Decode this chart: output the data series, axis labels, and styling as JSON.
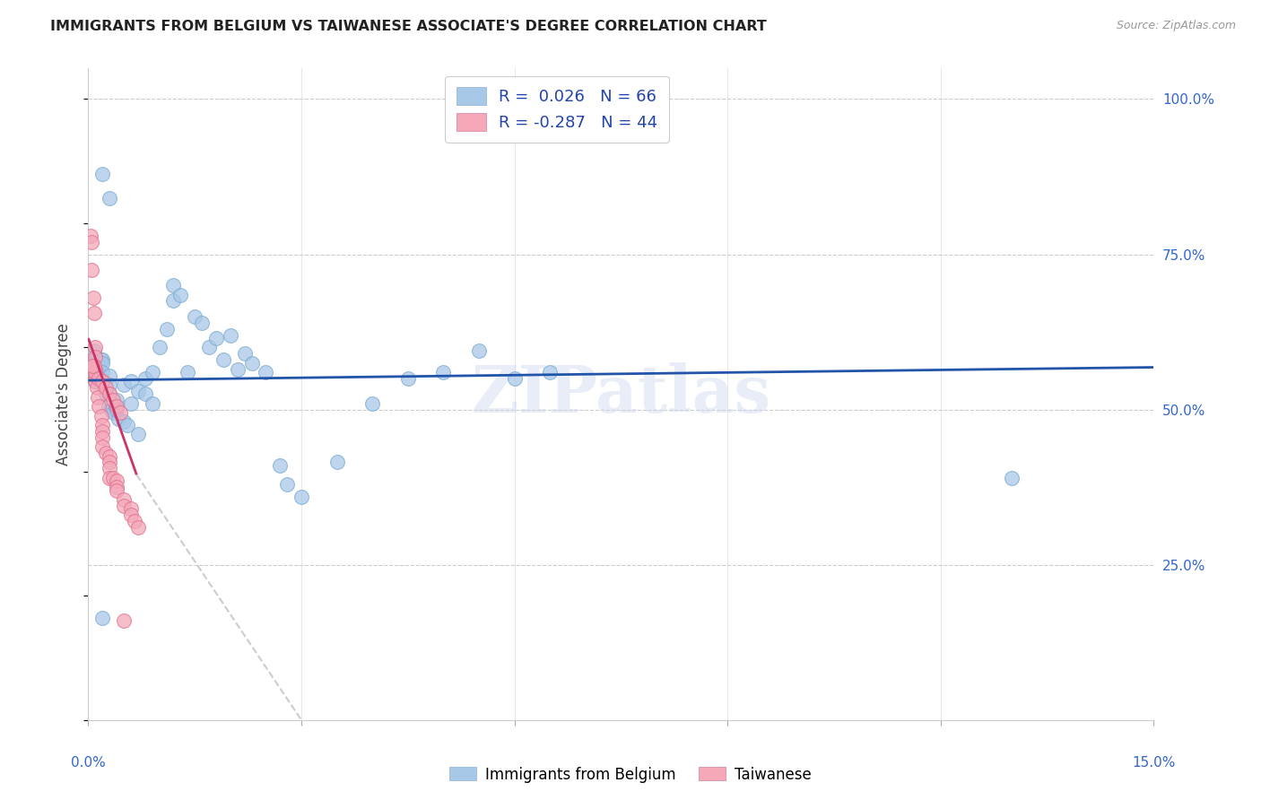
{
  "title": "IMMIGRANTS FROM BELGIUM VS TAIWANESE ASSOCIATE'S DEGREE CORRELATION CHART",
  "source": "Source: ZipAtlas.com",
  "ylabel": "Associate's Degree",
  "xlim": [
    0.0,
    0.15
  ],
  "ylim": [
    0.0,
    1.05
  ],
  "watermark": "ZIPatlas",
  "blue_color": "#a8c8e8",
  "pink_color": "#f4a8b8",
  "blue_line_color": "#2255aa",
  "pink_line_color": "#cc3366",
  "dashed_line_color": "#cccccc",
  "blue_x": [
    0.0005,
    0.0008,
    0.001,
    0.001,
    0.001,
    0.0012,
    0.0013,
    0.0015,
    0.0018,
    0.002,
    0.002,
    0.002,
    0.002,
    0.0022,
    0.0025,
    0.0028,
    0.003,
    0.003,
    0.003,
    0.0032,
    0.0035,
    0.0038,
    0.004,
    0.004,
    0.0042,
    0.005,
    0.005,
    0.0055,
    0.006,
    0.006,
    0.007,
    0.007,
    0.008,
    0.008,
    0.009,
    0.009,
    0.01,
    0.011,
    0.012,
    0.012,
    0.013,
    0.014,
    0.015,
    0.016,
    0.017,
    0.018,
    0.019,
    0.02,
    0.021,
    0.022,
    0.023,
    0.025,
    0.027,
    0.028,
    0.03,
    0.035,
    0.04,
    0.045,
    0.05,
    0.055,
    0.06,
    0.065,
    0.002,
    0.003,
    0.13,
    0.002
  ],
  "blue_y": [
    0.575,
    0.595,
    0.58,
    0.555,
    0.545,
    0.565,
    0.565,
    0.57,
    0.58,
    0.58,
    0.575,
    0.56,
    0.545,
    0.535,
    0.525,
    0.505,
    0.555,
    0.54,
    0.525,
    0.5,
    0.495,
    0.505,
    0.515,
    0.5,
    0.485,
    0.54,
    0.48,
    0.475,
    0.545,
    0.51,
    0.53,
    0.46,
    0.55,
    0.525,
    0.56,
    0.51,
    0.6,
    0.63,
    0.675,
    0.7,
    0.685,
    0.56,
    0.65,
    0.64,
    0.6,
    0.615,
    0.58,
    0.62,
    0.565,
    0.59,
    0.575,
    0.56,
    0.41,
    0.38,
    0.36,
    0.415,
    0.51,
    0.55,
    0.56,
    0.595,
    0.55,
    0.56,
    0.88,
    0.84,
    0.39,
    0.165
  ],
  "pink_x": [
    0.0003,
    0.0005,
    0.0005,
    0.0007,
    0.0008,
    0.001,
    0.001,
    0.001,
    0.001,
    0.001,
    0.0012,
    0.0013,
    0.0015,
    0.0018,
    0.002,
    0.002,
    0.002,
    0.002,
    0.0025,
    0.003,
    0.003,
    0.003,
    0.003,
    0.0035,
    0.004,
    0.004,
    0.004,
    0.005,
    0.005,
    0.006,
    0.006,
    0.0065,
    0.007,
    0.001,
    0.0008,
    0.0006,
    0.0015,
    0.002,
    0.0025,
    0.003,
    0.0035,
    0.004,
    0.0045,
    0.005
  ],
  "pink_y": [
    0.78,
    0.77,
    0.725,
    0.68,
    0.655,
    0.6,
    0.585,
    0.565,
    0.555,
    0.545,
    0.535,
    0.52,
    0.505,
    0.49,
    0.475,
    0.465,
    0.455,
    0.44,
    0.43,
    0.425,
    0.415,
    0.405,
    0.39,
    0.39,
    0.385,
    0.375,
    0.37,
    0.355,
    0.345,
    0.34,
    0.33,
    0.32,
    0.31,
    0.56,
    0.57,
    0.57,
    0.55,
    0.545,
    0.535,
    0.525,
    0.515,
    0.505,
    0.495,
    0.16
  ],
  "blue_trend_x": [
    0.0,
    0.15
  ],
  "blue_trend_y": [
    0.547,
    0.568
  ],
  "pink_trend_x": [
    0.0,
    0.0068
  ],
  "pink_trend_y": [
    0.615,
    0.395
  ],
  "dashed_trend_x": [
    0.0068,
    0.03
  ],
  "dashed_trend_y": [
    0.395,
    0.0
  ]
}
